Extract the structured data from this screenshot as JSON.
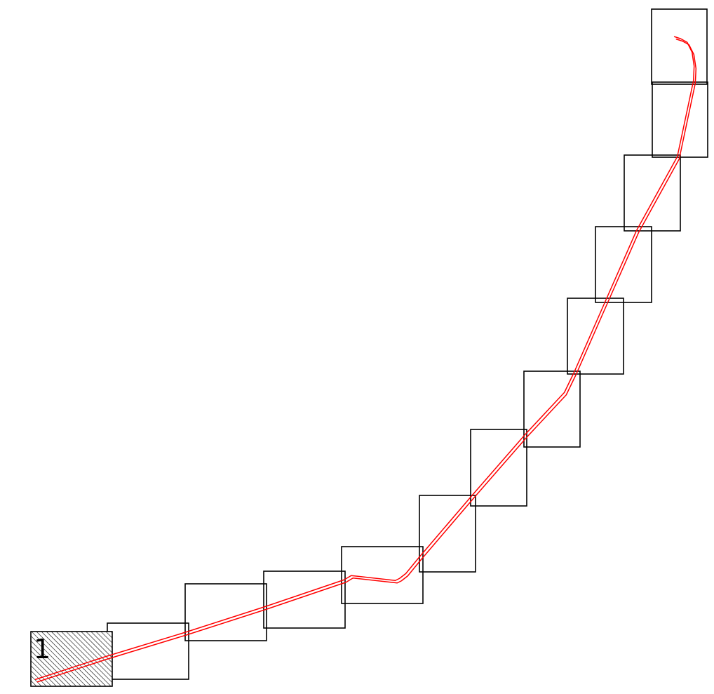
{
  "diagram": {
    "start_label": "1",
    "colors": {
      "frame_stroke": "#000000",
      "path_color": "#ff0000",
      "hatch_color": "#000000",
      "background": "#ffffff"
    },
    "frame_count": 13
  }
}
